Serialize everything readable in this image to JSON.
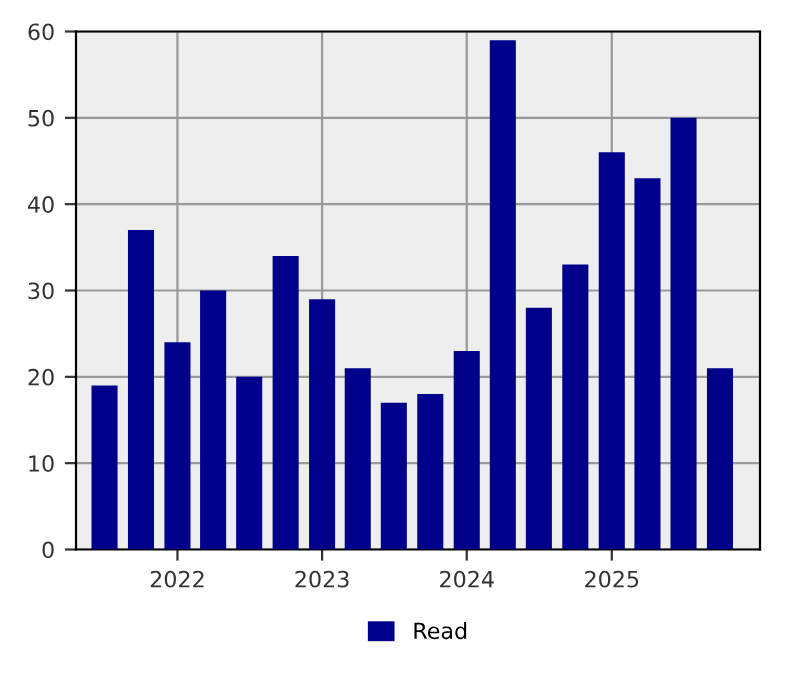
{
  "chart_data": {
    "type": "bar",
    "x": [
      "2021-07-01",
      "2021-10-01",
      "2022-01-01",
      "2022-04-01",
      "2022-07-01",
      "2022-10-01",
      "2023-01-01",
      "2023-04-01",
      "2023-07-01",
      "2023-10-01",
      "2024-01-01",
      "2024-04-01",
      "2024-07-01",
      "2024-10-01",
      "2025-01-01",
      "2025-04-01",
      "2025-07-01",
      "2025-10-01"
    ],
    "series": [
      {
        "name": "Read",
        "color": "#00008b",
        "values": [
          19,
          37,
          24,
          30,
          20,
          34,
          29,
          21,
          17,
          18,
          23,
          59,
          28,
          33,
          46,
          43,
          50,
          21
        ]
      }
    ],
    "xlim": [
      "2021-04-20",
      "2026-01-10"
    ],
    "xticks": [
      {
        "value": "2022-01-01",
        "label": "2022"
      },
      {
        "value": "2023-01-01",
        "label": "2023"
      },
      {
        "value": "2024-01-01",
        "label": "2024"
      },
      {
        "value": "2025-01-01",
        "label": "2025"
      }
    ],
    "ylim": [
      0,
      60
    ],
    "yticks": [
      0,
      10,
      20,
      30,
      40,
      50,
      60
    ],
    "grid": true,
    "legend": "bottom"
  }
}
